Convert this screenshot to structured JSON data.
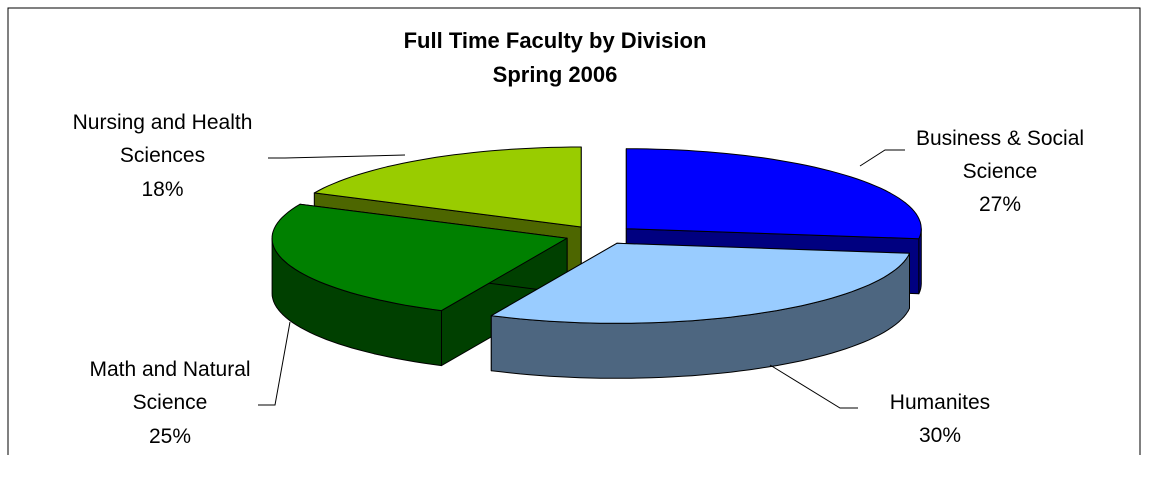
{
  "chart_data": {
    "type": "pie3d",
    "title": "Full Time Faculty by Division",
    "subtitle": "Spring 2006",
    "categories": [
      "Business & Social Science",
      "Humanites",
      "Math and Natural Science",
      "Nursing and Health Sciences"
    ],
    "values": [
      27,
      30,
      25,
      18
    ],
    "value_labels": [
      "27%",
      "30%",
      "25%",
      "18%"
    ],
    "colors": [
      "#0000ff",
      "#99ccff",
      "#008000",
      "#99cc00"
    ]
  }
}
